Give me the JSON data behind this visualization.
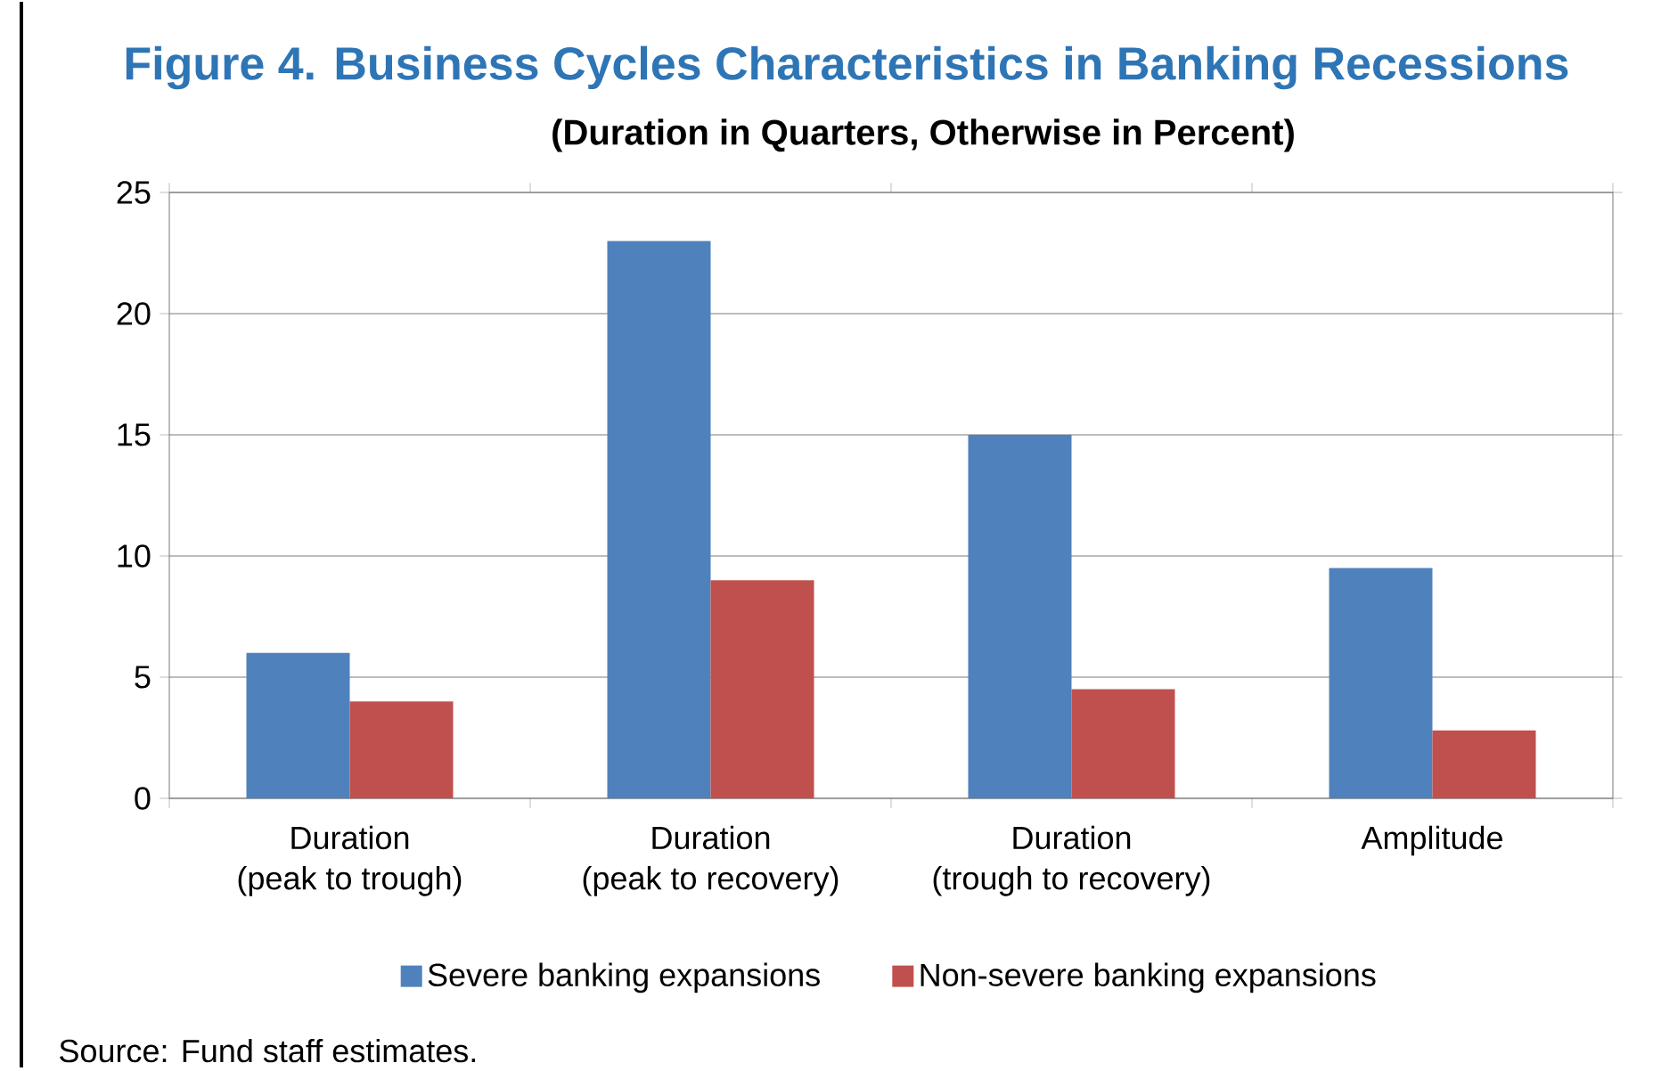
{
  "chart_data": {
    "type": "bar",
    "title": "Figure 4. Business Cycles Characteristics in Banking Recessions",
    "subtitle": "(Duration in Quarters, Otherwise in Percent)",
    "categories": [
      "Duration\n(peak to trough)",
      "Duration\n(peak to recovery)",
      "Duration\n(trough to recovery)",
      "Amplitude"
    ],
    "series": [
      {
        "name": "Severe banking expansions",
        "color": "#4f81bd",
        "values": [
          6,
          23,
          15,
          9.5
        ]
      },
      {
        "name": "Non-severe banking expansions",
        "color": "#c0504d",
        "values": [
          4,
          9,
          4.5,
          2.8
        ]
      }
    ],
    "ylim": [
      0,
      25
    ],
    "yticks": [
      0,
      5,
      10,
      15,
      20,
      25
    ],
    "grid": "y",
    "legend": "bottom",
    "annotations": [
      "Source: Fund staff estimates."
    ]
  }
}
